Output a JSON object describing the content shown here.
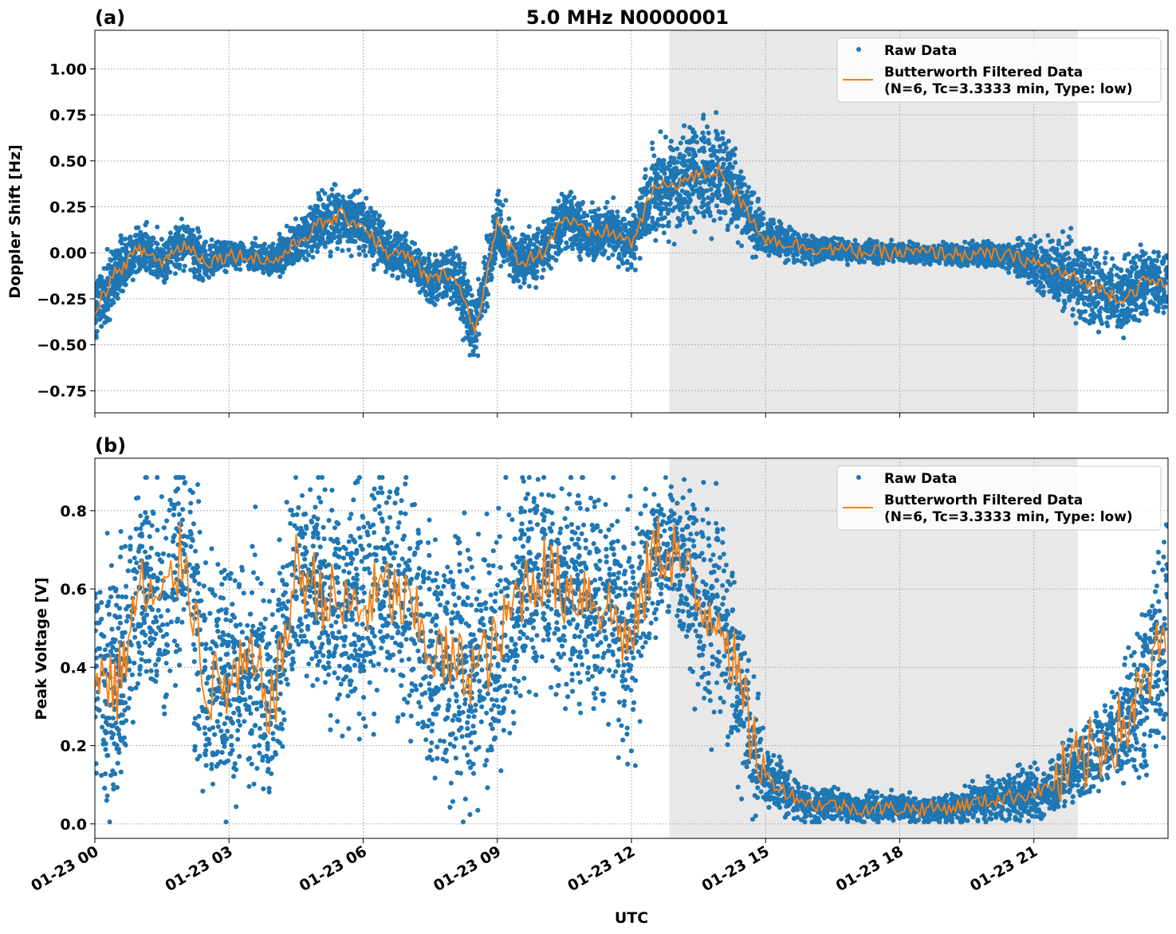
{
  "chart_data": [
    {
      "type": "scatter",
      "panel_label": "(a)",
      "title": "5.0 MHz N0000001",
      "xlabel": "",
      "ylabel": "Doppler Shift [Hz]",
      "xlim_hours": [
        0,
        24
      ],
      "ylim": [
        -0.87,
        1.21
      ],
      "yticks": [
        "−0.75",
        "−0.50",
        "−0.25",
        "0.00",
        "0.25",
        "0.50",
        "0.75",
        "1.00"
      ],
      "ytick_values": [
        -0.75,
        -0.5,
        -0.25,
        0,
        0.25,
        0.5,
        0.75,
        1.0
      ],
      "grid": true,
      "shaded_region_hours": [
        12.85,
        21.98
      ],
      "shade_color": "#e8e8e8",
      "legend": {
        "placement": "top-right",
        "raw": "Raw Data",
        "filtered_line1": "Butterworth Filtered Data",
        "filtered_line2": "(N=6, Tc=3.3333 min, Type: low)"
      },
      "series": [
        {
          "name": "Raw Data",
          "color": "#1f77b4",
          "kind": "scatter",
          "x_hours": [
            0,
            0.5,
            1,
            1.5,
            2,
            2.5,
            3,
            3.5,
            4,
            4.5,
            5,
            5.5,
            6,
            6.5,
            7,
            7.5,
            8,
            8.5,
            9,
            9.5,
            10,
            10.5,
            11,
            11.5,
            12,
            12.5,
            13,
            13.5,
            14,
            14.5,
            15,
            15.5,
            16,
            16.5,
            17,
            17.5,
            18,
            18.5,
            19,
            19.5,
            20,
            20.5,
            21,
            21.5,
            22,
            22.5,
            23,
            23.5,
            24
          ],
          "center": [
            -0.3,
            -0.1,
            0.02,
            -0.05,
            0.05,
            -0.05,
            -0.01,
            -0.02,
            -0.05,
            0.05,
            0.15,
            0.2,
            0.15,
            0.0,
            -0.02,
            -0.15,
            -0.1,
            -0.42,
            0.15,
            -0.05,
            0.0,
            0.2,
            0.1,
            0.12,
            0.05,
            0.35,
            0.38,
            0.42,
            0.45,
            0.25,
            0.08,
            0.05,
            0.03,
            0.02,
            0.01,
            0.0,
            0.0,
            0.0,
            0.0,
            -0.01,
            -0.01,
            -0.02,
            -0.05,
            -0.1,
            -0.15,
            -0.2,
            -0.25,
            -0.15,
            -0.18
          ],
          "spread": [
            0.2,
            0.17,
            0.15,
            0.15,
            0.15,
            0.12,
            0.08,
            0.08,
            0.1,
            0.15,
            0.18,
            0.2,
            0.17,
            0.15,
            0.12,
            0.15,
            0.17,
            0.2,
            0.2,
            0.15,
            0.15,
            0.17,
            0.15,
            0.15,
            0.17,
            0.25,
            0.3,
            0.3,
            0.3,
            0.22,
            0.12,
            0.1,
            0.08,
            0.07,
            0.06,
            0.06,
            0.06,
            0.06,
            0.06,
            0.07,
            0.07,
            0.08,
            0.15,
            0.2,
            0.25,
            0.25,
            0.22,
            0.2,
            0.2
          ]
        },
        {
          "name": "Butterworth Filtered Data (N=6, Tc=3.3333 min, Type: low)",
          "color": "#ff7f0e",
          "kind": "line",
          "x_hours": [
            0,
            0.5,
            1,
            1.5,
            2,
            2.5,
            3,
            3.5,
            4,
            4.5,
            5,
            5.5,
            6,
            6.5,
            7,
            7.5,
            8,
            8.5,
            9,
            9.5,
            10,
            10.5,
            11,
            11.5,
            12,
            12.5,
            13,
            13.5,
            14,
            14.5,
            15,
            15.5,
            16,
            16.5,
            17,
            17.5,
            18,
            18.5,
            19,
            19.5,
            20,
            20.5,
            21,
            21.5,
            22,
            22.5,
            23,
            23.5,
            24
          ],
          "values": [
            -0.3,
            -0.1,
            0.02,
            -0.05,
            0.05,
            -0.05,
            -0.01,
            -0.02,
            -0.05,
            0.05,
            0.15,
            0.2,
            0.15,
            0.0,
            -0.02,
            -0.15,
            -0.1,
            -0.42,
            0.15,
            -0.05,
            0.0,
            0.2,
            0.1,
            0.12,
            0.05,
            0.35,
            0.38,
            0.42,
            0.45,
            0.25,
            0.08,
            0.05,
            0.03,
            0.02,
            0.01,
            0.0,
            0.0,
            0.0,
            0.0,
            -0.01,
            -0.01,
            -0.02,
            -0.05,
            -0.1,
            -0.15,
            -0.2,
            -0.25,
            -0.15,
            -0.18
          ]
        }
      ]
    },
    {
      "type": "scatter",
      "panel_label": "(b)",
      "xlabel": "UTC",
      "ylabel": "Peak Voltage [V]",
      "xlim_hours": [
        0,
        24
      ],
      "xticks": [
        "01-23 00",
        "01-23 03",
        "01-23 06",
        "01-23 09",
        "01-23 12",
        "01-23 15",
        "01-23 18",
        "01-23 21"
      ],
      "xtick_hours": [
        0,
        3,
        6,
        9,
        12,
        15,
        18,
        21
      ],
      "ylim": [
        -0.037,
        0.934
      ],
      "yticks": [
        "0.0",
        "0.2",
        "0.4",
        "0.6",
        "0.8"
      ],
      "ytick_values": [
        0,
        0.2,
        0.4,
        0.6,
        0.8
      ],
      "grid": true,
      "shaded_region_hours": [
        12.85,
        21.98
      ],
      "legend": {
        "placement": "top-right",
        "raw": "Raw Data",
        "filtered_line1": "Butterworth Filtered Data",
        "filtered_line2": "(N=6, Tc=3.3333 min, Type: low)"
      },
      "series": [
        {
          "name": "Raw Data",
          "color": "#1f77b4",
          "kind": "scatter",
          "x_hours": [
            0,
            0.5,
            1,
            1.5,
            2,
            2.5,
            3,
            3.5,
            4,
            4.5,
            5,
            5.5,
            6,
            6.5,
            7,
            7.5,
            8,
            8.5,
            9,
            9.5,
            10,
            10.5,
            11,
            11.5,
            12,
            12.5,
            13,
            13.5,
            14,
            14.5,
            15,
            15.5,
            16,
            16.5,
            17,
            17.5,
            18,
            18.5,
            19,
            19.5,
            20,
            20.5,
            21,
            21.5,
            22,
            22.5,
            23,
            23.5,
            24
          ],
          "center": [
            0.4,
            0.35,
            0.6,
            0.55,
            0.7,
            0.35,
            0.35,
            0.4,
            0.3,
            0.65,
            0.6,
            0.55,
            0.55,
            0.6,
            0.55,
            0.45,
            0.4,
            0.4,
            0.45,
            0.6,
            0.65,
            0.6,
            0.6,
            0.55,
            0.45,
            0.7,
            0.7,
            0.55,
            0.55,
            0.3,
            0.12,
            0.08,
            0.05,
            0.05,
            0.04,
            0.04,
            0.04,
            0.04,
            0.04,
            0.05,
            0.06,
            0.07,
            0.08,
            0.1,
            0.15,
            0.2,
            0.25,
            0.35,
            0.5
          ],
          "spread": [
            0.3,
            0.35,
            0.3,
            0.35,
            0.35,
            0.35,
            0.35,
            0.35,
            0.3,
            0.3,
            0.3,
            0.35,
            0.35,
            0.3,
            0.35,
            0.35,
            0.35,
            0.35,
            0.35,
            0.3,
            0.25,
            0.3,
            0.3,
            0.3,
            0.35,
            0.2,
            0.2,
            0.3,
            0.3,
            0.25,
            0.1,
            0.06,
            0.05,
            0.05,
            0.04,
            0.04,
            0.04,
            0.04,
            0.04,
            0.05,
            0.06,
            0.07,
            0.08,
            0.08,
            0.1,
            0.12,
            0.15,
            0.25,
            0.35
          ]
        },
        {
          "name": "Butterworth Filtered Data (N=6, Tc=3.3333 min, Type: low)",
          "color": "#ff7f0e",
          "kind": "line",
          "x_hours": [
            0,
            0.5,
            1,
            1.5,
            2,
            2.5,
            3,
            3.5,
            4,
            4.5,
            5,
            5.5,
            6,
            6.5,
            7,
            7.5,
            8,
            8.5,
            9,
            9.5,
            10,
            10.5,
            11,
            11.5,
            12,
            12.5,
            13,
            13.5,
            14,
            14.5,
            15,
            15.5,
            16,
            16.5,
            17,
            17.5,
            18,
            18.5,
            19,
            19.5,
            20,
            20.5,
            21,
            21.5,
            22,
            22.5,
            23,
            23.5,
            24
          ],
          "values": [
            0.4,
            0.35,
            0.6,
            0.55,
            0.7,
            0.35,
            0.35,
            0.4,
            0.3,
            0.65,
            0.6,
            0.55,
            0.55,
            0.6,
            0.55,
            0.45,
            0.4,
            0.4,
            0.45,
            0.6,
            0.65,
            0.6,
            0.6,
            0.55,
            0.45,
            0.7,
            0.7,
            0.55,
            0.55,
            0.3,
            0.12,
            0.08,
            0.05,
            0.05,
            0.04,
            0.04,
            0.04,
            0.04,
            0.04,
            0.05,
            0.06,
            0.07,
            0.08,
            0.1,
            0.15,
            0.2,
            0.25,
            0.35,
            0.5
          ]
        }
      ]
    }
  ]
}
